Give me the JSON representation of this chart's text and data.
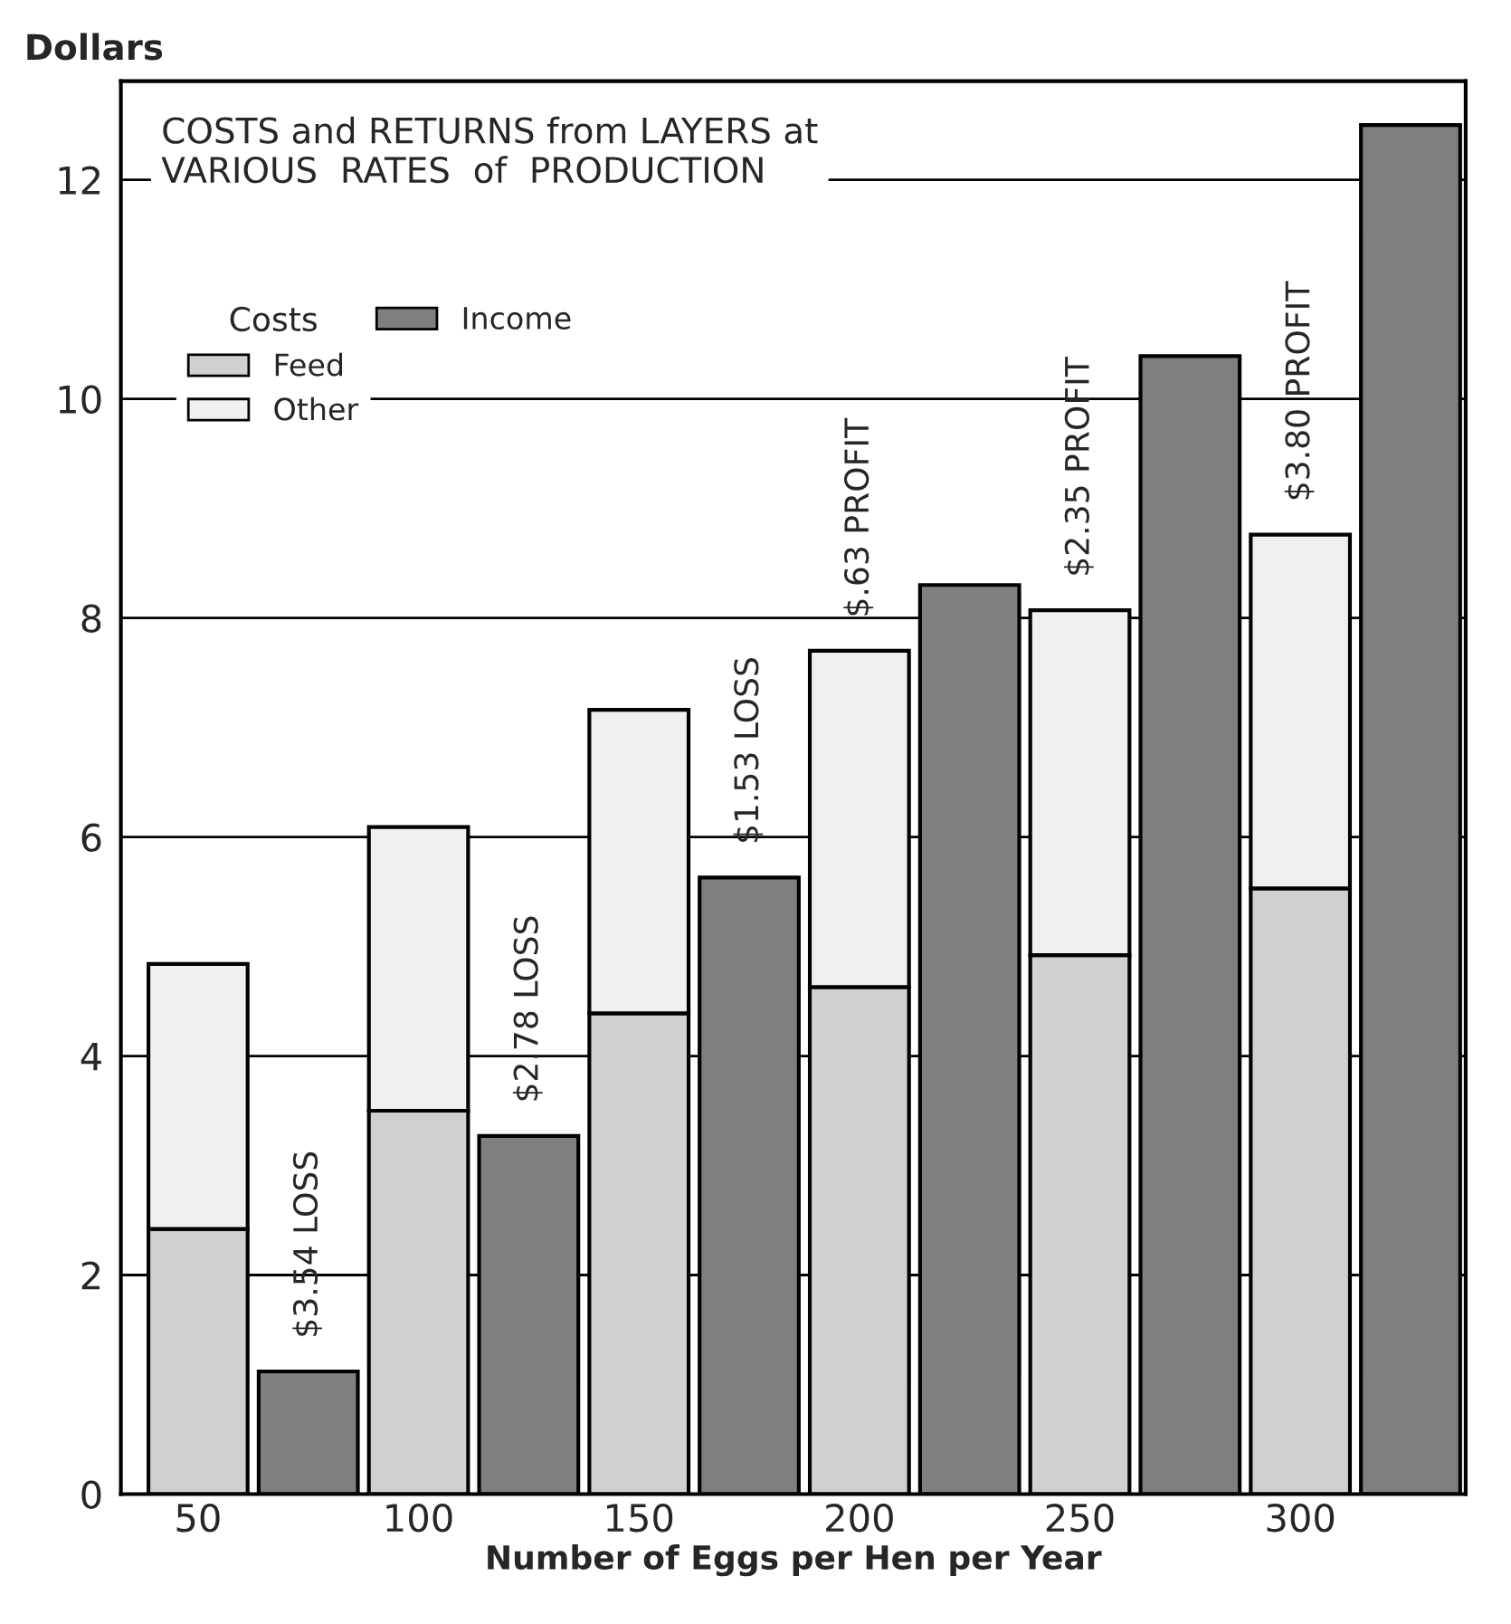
{
  "chart_data": {
    "type": "bar",
    "title": "COSTS and RETURNS from LAYERS at\nVARIOUS  RATES  of  PRODUCTION",
    "xlabel": "Number of Eggs per Hen per Year",
    "ylabel": "Dollars",
    "legend_title": "Costs",
    "categories": [
      "50",
      null,
      "100",
      null,
      "150",
      null,
      "200",
      null,
      "250",
      null,
      "300",
      null
    ],
    "series": [
      {
        "name": "Feed",
        "color": "#d0d0d0",
        "values": [
          2.42,
          null,
          3.5,
          null,
          4.39,
          null,
          4.63,
          null,
          4.92,
          null,
          5.53,
          null
        ]
      },
      {
        "name": "Other",
        "color": "#f0f0f0",
        "values": [
          2.42,
          null,
          2.59,
          null,
          2.77,
          null,
          3.07,
          null,
          3.15,
          null,
          3.23,
          null
        ]
      },
      {
        "name": "Income",
        "color": "#7f7f7f",
        "values": [
          null,
          1.12,
          null,
          3.27,
          null,
          5.63,
          null,
          8.3,
          null,
          10.39,
          null,
          12.5
        ]
      }
    ],
    "stacked": true,
    "ylim": [
      0,
      12.9
    ],
    "yticks": [
      0,
      2,
      4,
      6,
      8,
      10,
      12
    ],
    "grid": "y",
    "legend": "top left",
    "annotations": [
      "$3.54 LOSS",
      "$2.78 LOSS",
      "$1.53 LOSS",
      "$.63 PROFIT",
      "$2.35 PROFIT",
      "$3.80 PROFIT"
    ]
  }
}
